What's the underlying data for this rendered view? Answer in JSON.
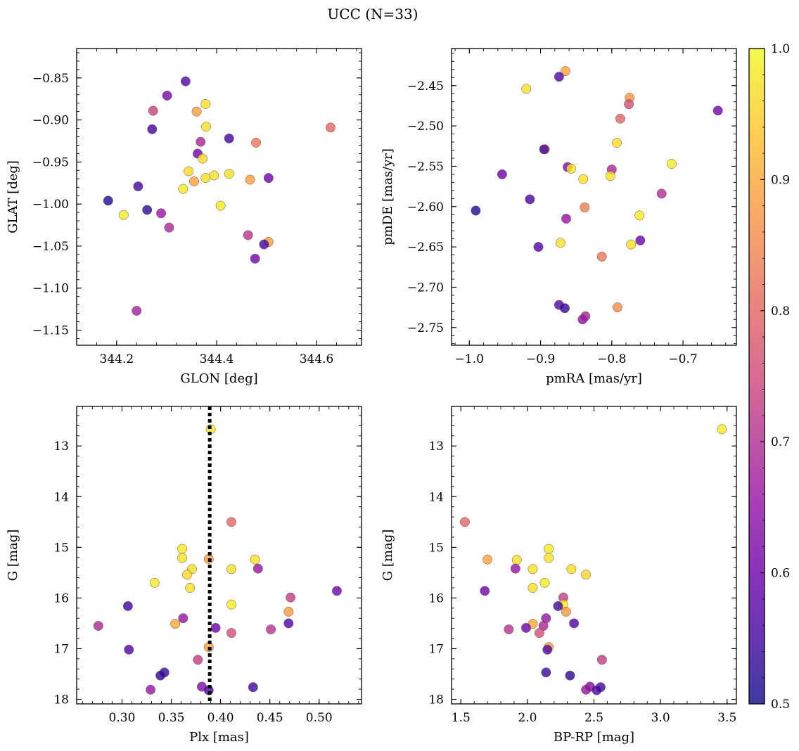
{
  "figure": {
    "title": "UCC (N=33)"
  },
  "colorbar": {
    "colormap": "plasma",
    "min": 0.5,
    "max": 1.0,
    "ticks": [
      "0.5",
      "0.6",
      "0.7",
      "0.8",
      "0.9",
      "1.0"
    ],
    "tick_values": [
      0.5,
      0.6,
      0.7,
      0.8,
      0.9,
      1.0
    ]
  },
  "chart_data": [
    {
      "type": "scatter",
      "id": "glon-glat",
      "xlabel": "GLON [deg]",
      "ylabel": "GLAT [deg]",
      "xlim": [
        344.12,
        344.69
      ],
      "ylim": [
        -1.168,
        -0.815
      ],
      "xticks": [
        344.2,
        344.4,
        344.6
      ],
      "xtick_labels": [
        "344.2",
        "344.4",
        "344.6"
      ],
      "yticks": [
        -1.15,
        -1.1,
        -1.05,
        -1.0,
        -0.95,
        -0.9,
        -0.85
      ],
      "ytick_labels": [
        "−1.15",
        "−1.10",
        "−1.05",
        "−1.00",
        "−0.95",
        "−0.90",
        "−0.85"
      ],
      "y_inverted": false,
      "points": [
        {
          "x": 344.338,
          "y": -0.854,
          "c": 0.57
        },
        {
          "x": 344.301,
          "y": -0.871,
          "c": 0.62
        },
        {
          "x": 344.378,
          "y": -0.881,
          "c": 0.97
        },
        {
          "x": 344.273,
          "y": -0.889,
          "c": 0.74
        },
        {
          "x": 344.36,
          "y": -0.89,
          "c": 0.89
        },
        {
          "x": 344.628,
          "y": -0.909,
          "c": 0.8
        },
        {
          "x": 344.271,
          "y": -0.911,
          "c": 0.56
        },
        {
          "x": 344.379,
          "y": -0.908,
          "c": 0.97
        },
        {
          "x": 344.425,
          "y": -0.922,
          "c": 0.55
        },
        {
          "x": 344.368,
          "y": -0.926,
          "c": 0.69
        },
        {
          "x": 344.479,
          "y": -0.927,
          "c": 0.83
        },
        {
          "x": 344.362,
          "y": -0.94,
          "c": 0.61
        },
        {
          "x": 344.372,
          "y": -0.946,
          "c": 0.96
        },
        {
          "x": 344.344,
          "y": -0.961,
          "c": 0.96
        },
        {
          "x": 344.425,
          "y": -0.964,
          "c": 0.97
        },
        {
          "x": 344.395,
          "y": -0.966,
          "c": 0.97
        },
        {
          "x": 344.378,
          "y": -0.969,
          "c": 0.97
        },
        {
          "x": 344.504,
          "y": -0.969,
          "c": 0.6
        },
        {
          "x": 344.355,
          "y": -0.973,
          "c": 0.89
        },
        {
          "x": 344.467,
          "y": -0.971,
          "c": 0.89
        },
        {
          "x": 344.243,
          "y": -0.979,
          "c": 0.55
        },
        {
          "x": 344.333,
          "y": -0.982,
          "c": 0.98
        },
        {
          "x": 344.183,
          "y": -0.996,
          "c": 0.52
        },
        {
          "x": 344.408,
          "y": -1.002,
          "c": 0.98
        },
        {
          "x": 344.261,
          "y": -1.007,
          "c": 0.53
        },
        {
          "x": 344.289,
          "y": -1.011,
          "c": 0.66
        },
        {
          "x": 344.214,
          "y": -1.013,
          "c": 0.98
        },
        {
          "x": 344.305,
          "y": -1.028,
          "c": 0.69
        },
        {
          "x": 344.463,
          "y": -1.037,
          "c": 0.71
        },
        {
          "x": 344.504,
          "y": -1.045,
          "c": 0.89
        },
        {
          "x": 344.495,
          "y": -1.048,
          "c": 0.55
        },
        {
          "x": 344.477,
          "y": -1.065,
          "c": 0.61
        },
        {
          "x": 344.24,
          "y": -1.127,
          "c": 0.68
        }
      ]
    },
    {
      "type": "scatter",
      "id": "pmra-pmde",
      "xlabel": "pmRA [mas/yr]",
      "ylabel": "pmDE [mas/yr]",
      "xlim": [
        -1.025,
        -0.625
      ],
      "ylim": [
        -2.772,
        -2.404
      ],
      "xticks": [
        -1.0,
        -0.9,
        -0.8,
        -0.7
      ],
      "xtick_labels": [
        "−1.0",
        "−0.9",
        "−0.8",
        "−0.7"
      ],
      "yticks": [
        -2.75,
        -2.7,
        -2.65,
        -2.6,
        -2.55,
        -2.5,
        -2.45
      ],
      "ytick_labels": [
        "−2.75",
        "−2.70",
        "−2.65",
        "−2.60",
        "−2.55",
        "−2.50",
        "−2.45"
      ],
      "y_inverted": false,
      "points": [
        {
          "x": -0.865,
          "y": -2.432,
          "c": 0.89
        },
        {
          "x": -0.874,
          "y": -2.439,
          "c": 0.57
        },
        {
          "x": -0.92,
          "y": -2.454,
          "c": 0.97
        },
        {
          "x": -0.775,
          "y": -2.465,
          "c": 0.87
        },
        {
          "x": -0.776,
          "y": -2.473,
          "c": 0.76
        },
        {
          "x": -0.651,
          "y": -2.481,
          "c": 0.61
        },
        {
          "x": -0.788,
          "y": -2.491,
          "c": 0.8
        },
        {
          "x": -0.793,
          "y": -2.521,
          "c": 0.97
        },
        {
          "x": -0.894,
          "y": -2.529,
          "c": 0.88
        },
        {
          "x": -0.895,
          "y": -2.529,
          "c": 0.55
        },
        {
          "x": -0.716,
          "y": -2.547,
          "c": 0.98
        },
        {
          "x": -0.862,
          "y": -2.551,
          "c": 0.63
        },
        {
          "x": -0.8,
          "y": -2.554,
          "c": 0.69
        },
        {
          "x": -0.857,
          "y": -2.553,
          "c": 0.98
        },
        {
          "x": -0.954,
          "y": -2.56,
          "c": 0.6
        },
        {
          "x": -0.802,
          "y": -2.562,
          "c": 0.97
        },
        {
          "x": -0.84,
          "y": -2.566,
          "c": 0.97
        },
        {
          "x": -0.73,
          "y": -2.584,
          "c": 0.7
        },
        {
          "x": -0.915,
          "y": -2.591,
          "c": 0.56
        },
        {
          "x": -0.838,
          "y": -2.601,
          "c": 0.84
        },
        {
          "x": -0.991,
          "y": -2.605,
          "c": 0.52
        },
        {
          "x": -0.761,
          "y": -2.611,
          "c": 0.98
        },
        {
          "x": -0.864,
          "y": -2.615,
          "c": 0.66
        },
        {
          "x": -0.76,
          "y": -2.642,
          "c": 0.61
        },
        {
          "x": -0.872,
          "y": -2.645,
          "c": 0.97
        },
        {
          "x": -0.773,
          "y": -2.647,
          "c": 0.97
        },
        {
          "x": -0.903,
          "y": -2.65,
          "c": 0.57
        },
        {
          "x": -0.814,
          "y": -2.662,
          "c": 0.83
        },
        {
          "x": -0.874,
          "y": -2.722,
          "c": 0.57
        },
        {
          "x": -0.792,
          "y": -2.725,
          "c": 0.86
        },
        {
          "x": -0.866,
          "y": -2.726,
          "c": 0.54
        },
        {
          "x": -0.837,
          "y": -2.736,
          "c": 0.69
        },
        {
          "x": -0.841,
          "y": -2.74,
          "c": 0.66
        }
      ]
    },
    {
      "type": "scatter",
      "id": "plx-g",
      "xlabel": "Plx [mas]",
      "ylabel": "G [mag]",
      "xlim": [
        0.254,
        0.543
      ],
      "ylim": [
        18.09,
        12.22
      ],
      "xticks": [
        0.3,
        0.35,
        0.4,
        0.45,
        0.5
      ],
      "xtick_labels": [
        "0.30",
        "0.35",
        "0.40",
        "0.45",
        "0.50"
      ],
      "yticks": [
        13,
        14,
        15,
        16,
        17,
        18
      ],
      "ytick_labels": [
        "13",
        "14",
        "15",
        "16",
        "17",
        "18"
      ],
      "y_inverted": true,
      "vline": {
        "x": 0.389,
        "style": "dotted"
      },
      "points": [
        {
          "x": 0.39,
          "y": 12.67,
          "c": 0.98
        },
        {
          "x": 0.411,
          "y": 14.5,
          "c": 0.8
        },
        {
          "x": 0.361,
          "y": 15.03,
          "c": 0.98
        },
        {
          "x": 0.361,
          "y": 15.21,
          "c": 0.97
        },
        {
          "x": 0.388,
          "y": 15.23,
          "c": 0.89
        },
        {
          "x": 0.435,
          "y": 15.24,
          "c": 0.97
        },
        {
          "x": 0.438,
          "y": 15.42,
          "c": 0.66
        },
        {
          "x": 0.411,
          "y": 15.43,
          "c": 0.97
        },
        {
          "x": 0.371,
          "y": 15.43,
          "c": 0.97
        },
        {
          "x": 0.366,
          "y": 15.54,
          "c": 0.96
        },
        {
          "x": 0.333,
          "y": 15.7,
          "c": 0.98
        },
        {
          "x": 0.369,
          "y": 15.8,
          "c": 0.97
        },
        {
          "x": 0.518,
          "y": 15.86,
          "c": 0.61
        },
        {
          "x": 0.471,
          "y": 15.99,
          "c": 0.73
        },
        {
          "x": 0.411,
          "y": 16.13,
          "c": 0.98
        },
        {
          "x": 0.306,
          "y": 16.16,
          "c": 0.55
        },
        {
          "x": 0.469,
          "y": 16.27,
          "c": 0.88
        },
        {
          "x": 0.362,
          "y": 16.4,
          "c": 0.66
        },
        {
          "x": 0.469,
          "y": 16.5,
          "c": 0.57
        },
        {
          "x": 0.354,
          "y": 16.51,
          "c": 0.9
        },
        {
          "x": 0.276,
          "y": 16.55,
          "c": 0.69
        },
        {
          "x": 0.395,
          "y": 16.59,
          "c": 0.6
        },
        {
          "x": 0.451,
          "y": 16.62,
          "c": 0.71
        },
        {
          "x": 0.411,
          "y": 16.69,
          "c": 0.76
        },
        {
          "x": 0.388,
          "y": 16.97,
          "c": 0.89
        },
        {
          "x": 0.307,
          "y": 17.02,
          "c": 0.57
        },
        {
          "x": 0.377,
          "y": 17.22,
          "c": 0.73
        },
        {
          "x": 0.343,
          "y": 17.47,
          "c": 0.54
        },
        {
          "x": 0.339,
          "y": 17.53,
          "c": 0.53
        },
        {
          "x": 0.381,
          "y": 17.75,
          "c": 0.63
        },
        {
          "x": 0.433,
          "y": 17.76,
          "c": 0.55
        },
        {
          "x": 0.329,
          "y": 17.81,
          "c": 0.66
        },
        {
          "x": 0.388,
          "y": 17.82,
          "c": 0.56
        }
      ]
    },
    {
      "type": "scatter",
      "id": "bprp-g",
      "xlabel": "BP-RP [mag]",
      "ylabel": "G [mag]",
      "xlim": [
        1.43,
        3.57
      ],
      "ylim": [
        18.09,
        12.22
      ],
      "xticks": [
        1.5,
        2.0,
        2.5,
        3.0,
        3.5
      ],
      "xtick_labels": [
        "1.5",
        "2.0",
        "2.5",
        "3.0",
        "3.5"
      ],
      "yticks": [
        13,
        14,
        15,
        16,
        17,
        18
      ],
      "ytick_labels": [
        "13",
        "14",
        "15",
        "16",
        "17",
        "18"
      ],
      "y_inverted": true,
      "points": [
        {
          "x": 3.46,
          "y": 12.67,
          "c": 0.98
        },
        {
          "x": 1.53,
          "y": 14.5,
          "c": 0.8
        },
        {
          "x": 2.16,
          "y": 15.03,
          "c": 0.98
        },
        {
          "x": 1.7,
          "y": 15.24,
          "c": 0.89
        },
        {
          "x": 1.92,
          "y": 15.25,
          "c": 0.97
        },
        {
          "x": 2.16,
          "y": 15.21,
          "c": 0.97
        },
        {
          "x": 1.91,
          "y": 15.42,
          "c": 0.66
        },
        {
          "x": 2.04,
          "y": 15.43,
          "c": 0.97
        },
        {
          "x": 2.33,
          "y": 15.43,
          "c": 0.97
        },
        {
          "x": 2.44,
          "y": 15.54,
          "c": 0.96
        },
        {
          "x": 2.13,
          "y": 15.7,
          "c": 0.98
        },
        {
          "x": 2.04,
          "y": 15.8,
          "c": 0.97
        },
        {
          "x": 1.68,
          "y": 15.86,
          "c": 0.61
        },
        {
          "x": 2.27,
          "y": 15.99,
          "c": 0.73
        },
        {
          "x": 2.27,
          "y": 16.13,
          "c": 0.98
        },
        {
          "x": 2.23,
          "y": 16.16,
          "c": 0.55
        },
        {
          "x": 2.29,
          "y": 16.27,
          "c": 0.88
        },
        {
          "x": 2.14,
          "y": 16.4,
          "c": 0.66
        },
        {
          "x": 2.35,
          "y": 16.5,
          "c": 0.57
        },
        {
          "x": 2.04,
          "y": 16.51,
          "c": 0.9
        },
        {
          "x": 2.12,
          "y": 16.55,
          "c": 0.69
        },
        {
          "x": 1.99,
          "y": 16.59,
          "c": 0.6
        },
        {
          "x": 1.86,
          "y": 16.62,
          "c": 0.71
        },
        {
          "x": 2.09,
          "y": 16.69,
          "c": 0.76
        },
        {
          "x": 2.16,
          "y": 16.97,
          "c": 0.89
        },
        {
          "x": 2.15,
          "y": 17.02,
          "c": 0.57
        },
        {
          "x": 2.56,
          "y": 17.22,
          "c": 0.73
        },
        {
          "x": 2.14,
          "y": 17.47,
          "c": 0.54
        },
        {
          "x": 2.32,
          "y": 17.53,
          "c": 0.53
        },
        {
          "x": 2.47,
          "y": 17.75,
          "c": 0.63
        },
        {
          "x": 2.55,
          "y": 17.76,
          "c": 0.55
        },
        {
          "x": 2.44,
          "y": 17.81,
          "c": 0.66
        },
        {
          "x": 2.52,
          "y": 17.82,
          "c": 0.56
        }
      ]
    }
  ]
}
